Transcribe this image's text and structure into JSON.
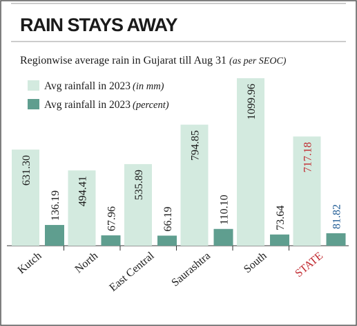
{
  "chart_data": {
    "type": "bar",
    "title": "RAIN STAYS AWAY",
    "subtitle": "Regionwise average rain in Gujarat till Aug 31",
    "subtitle_note": "(as per SEOC)",
    "categories": [
      "Kutch",
      "North",
      "East Central",
      "Saurashtra",
      "South",
      "STATE"
    ],
    "series": [
      {
        "name": "Avg rainfall in 2023",
        "unit_note": "(in mm)",
        "color": "#d3eadf",
        "values": [
          631.3,
          494.41,
          535.89,
          794.85,
          1099.96,
          717.18
        ],
        "value_labels": [
          "631.30",
          "494.41",
          "535.89",
          "794.85",
          "1099.96",
          "717.18"
        ]
      },
      {
        "name": "Avg rainfall in 2023",
        "unit_note": "(percent)",
        "color": "#5f9e8f",
        "values": [
          136.19,
          67.96,
          66.19,
          110.1,
          73.64,
          81.82
        ],
        "value_labels": [
          "136.19",
          "67.96",
          "66.19",
          "110.10",
          "73.64",
          "81.82"
        ]
      }
    ]
  }
}
